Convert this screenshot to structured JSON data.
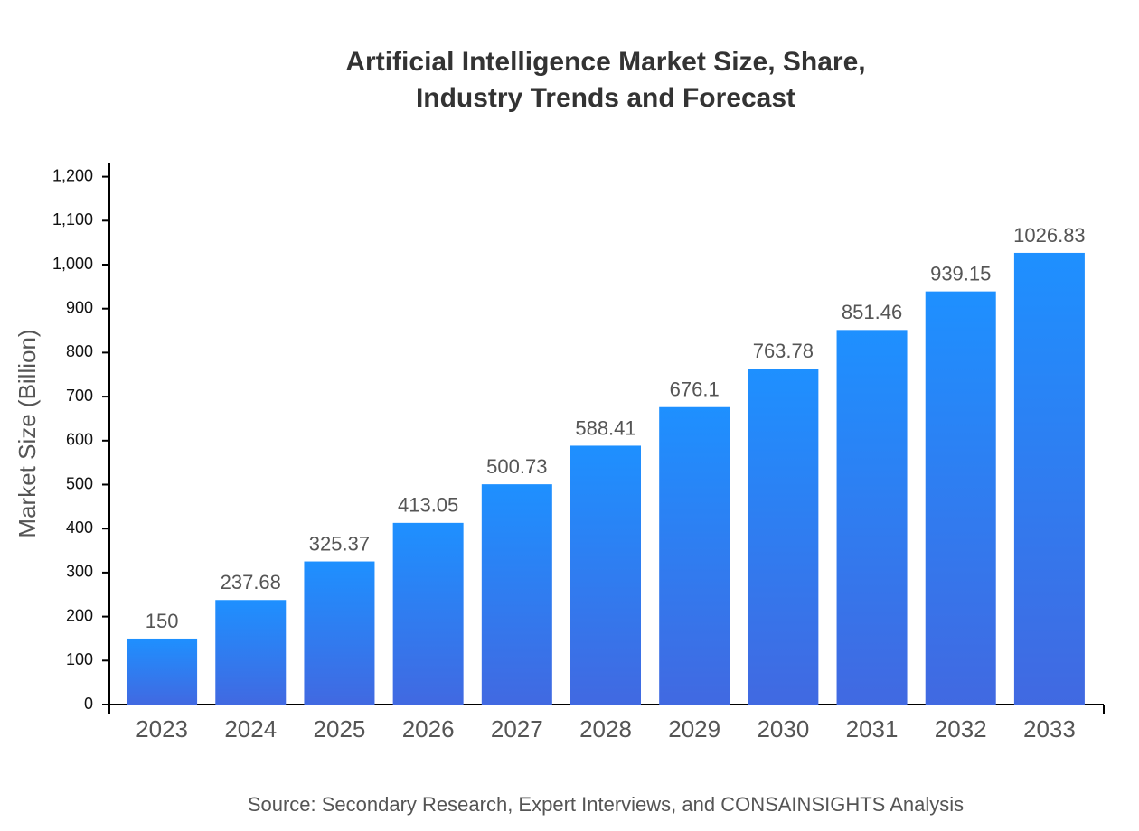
{
  "chart_data": {
    "type": "bar",
    "title": [
      "Artificial Intelligence Market Size, Share,",
      "Industry Trends and Forecast"
    ],
    "y_label": "Market Size (Billion)",
    "source": "Source: Secondary Research, Expert Interviews, and CONSAINSIGHTS Analysis",
    "categories": [
      "2023",
      "2024",
      "2025",
      "2026",
      "2027",
      "2028",
      "2029",
      "2030",
      "2031",
      "2032",
      "2033"
    ],
    "values": [
      150,
      237.68,
      325.37,
      413.05,
      500.73,
      588.41,
      676.1,
      763.78,
      851.46,
      939.15,
      1026.83
    ],
    "gradient": [
      "#1e90ff",
      "#4169e1"
    ],
    "ylim": [
      0,
      1230
    ],
    "yticks": [
      0,
      100,
      200,
      300,
      400,
      500,
      600,
      700,
      800,
      900,
      {
        "value": 1000,
        "label": "1,000"
      },
      {
        "value": 1100,
        "label": "1,100"
      },
      {
        "value": 1200,
        "label": "1,200"
      }
    ]
  }
}
